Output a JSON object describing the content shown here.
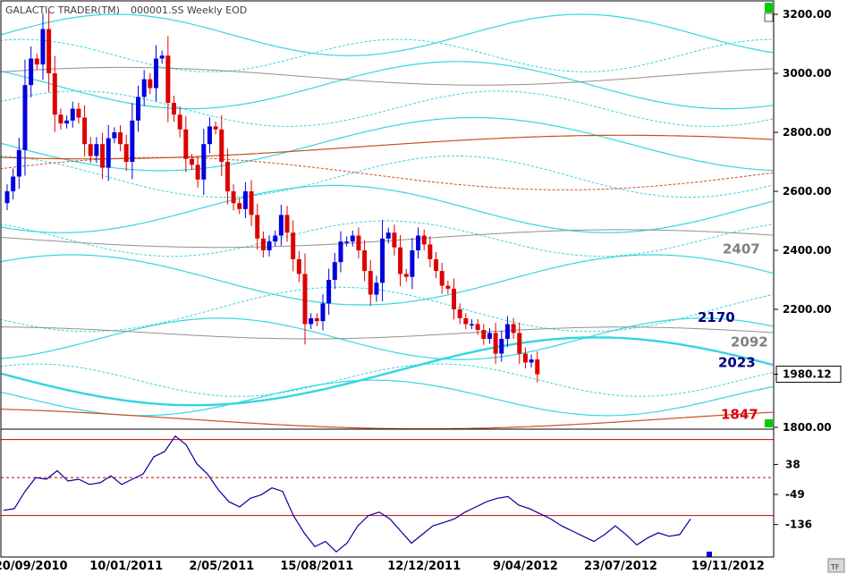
{
  "header": {
    "app": "GALACTIC TRADER(TM)",
    "symbol": "000001.SS Weekly EOD"
  },
  "last_price": "1980.12",
  "colors": {
    "up": "#0000dd",
    "down": "#dd0000",
    "cyan": "#33d6e0",
    "brown": "#c8501e",
    "gray": "#909090",
    "osc": "#0000a0",
    "limit": "#cc0000",
    "green": "#00cc00"
  },
  "chart_data": [
    {
      "type": "candlestick",
      "timeframe": "weekly",
      "ylim": [
        1800,
        3260
      ],
      "y_ticks": [
        "3200.00",
        "3000.00",
        "2800.00",
        "2600.00",
        "2400.00",
        "2200.00",
        "1980.12",
        "1800.00"
      ],
      "x_ticks": [
        "20/09/2010",
        "10/01/2011",
        "2/05/2011",
        "15/08/2011",
        "12/12/2011",
        "9/04/2012",
        "23/07/2012",
        "19/11/2012"
      ],
      "x_tick_week_index": [
        4,
        20,
        36,
        52,
        70,
        87,
        103,
        121
      ],
      "close_series": [
        2600,
        2650,
        2740,
        2960,
        3050,
        3030,
        3150,
        3000,
        2860,
        2830,
        2840,
        2880,
        2850,
        2760,
        2720,
        2760,
        2680,
        2780,
        2800,
        2760,
        2700,
        2840,
        2920,
        2980,
        2950,
        3050,
        3060,
        2900,
        2860,
        2810,
        2710,
        2690,
        2640,
        2760,
        2820,
        2810,
        2700,
        2600,
        2560,
        2540,
        2600,
        2520,
        2440,
        2400,
        2430,
        2450,
        2520,
        2460,
        2370,
        2320,
        2150,
        2170,
        2160,
        2220,
        2300,
        2360,
        2430,
        2430,
        2450,
        2400,
        2330,
        2250,
        2290,
        2440,
        2460,
        2410,
        2320,
        2310,
        2400,
        2450,
        2420,
        2370,
        2330,
        2280,
        2270,
        2200,
        2170,
        2150,
        2150,
        2130,
        2100,
        2120,
        2050,
        2100,
        2150,
        2120,
        2050,
        2020,
        2030,
        1980.12
      ],
      "annotations": [
        {
          "text": "2407",
          "price": 2407,
          "color": "#808080"
        },
        {
          "text": "2170",
          "price": 2170,
          "color": "#000080"
        },
        {
          "text": "2092",
          "price": 2092,
          "color": "#808080"
        },
        {
          "text": "2023",
          "price": 2023,
          "color": "#000080"
        },
        {
          "text": "1847",
          "price": 1847,
          "color": "#dd0000"
        }
      ]
    },
    {
      "type": "line",
      "panel": "oscillator",
      "ylim": [
        -230,
        140
      ],
      "y_ticks": [
        "38",
        "-49",
        "-136"
      ],
      "reference_lines": [
        110,
        0,
        -110
      ],
      "values": [
        -95,
        -90,
        -40,
        0,
        -5,
        20,
        -10,
        -5,
        -20,
        -15,
        5,
        -20,
        -5,
        10,
        60,
        75,
        120,
        95,
        40,
        10,
        -35,
        -70,
        -85,
        -60,
        -50,
        -30,
        -40,
        -110,
        -160,
        -200,
        -185,
        -215,
        -190,
        -140,
        -110,
        -100,
        -120,
        -155,
        -190,
        -165,
        -140,
        -130,
        -120,
        -100,
        -85,
        -70,
        -60,
        -55,
        -80,
        -90,
        -105,
        -120,
        -140,
        -155,
        -170,
        -185,
        -165,
        -140,
        -165,
        -195,
        -175,
        -160,
        -170,
        -165,
        -120
      ]
    }
  ]
}
